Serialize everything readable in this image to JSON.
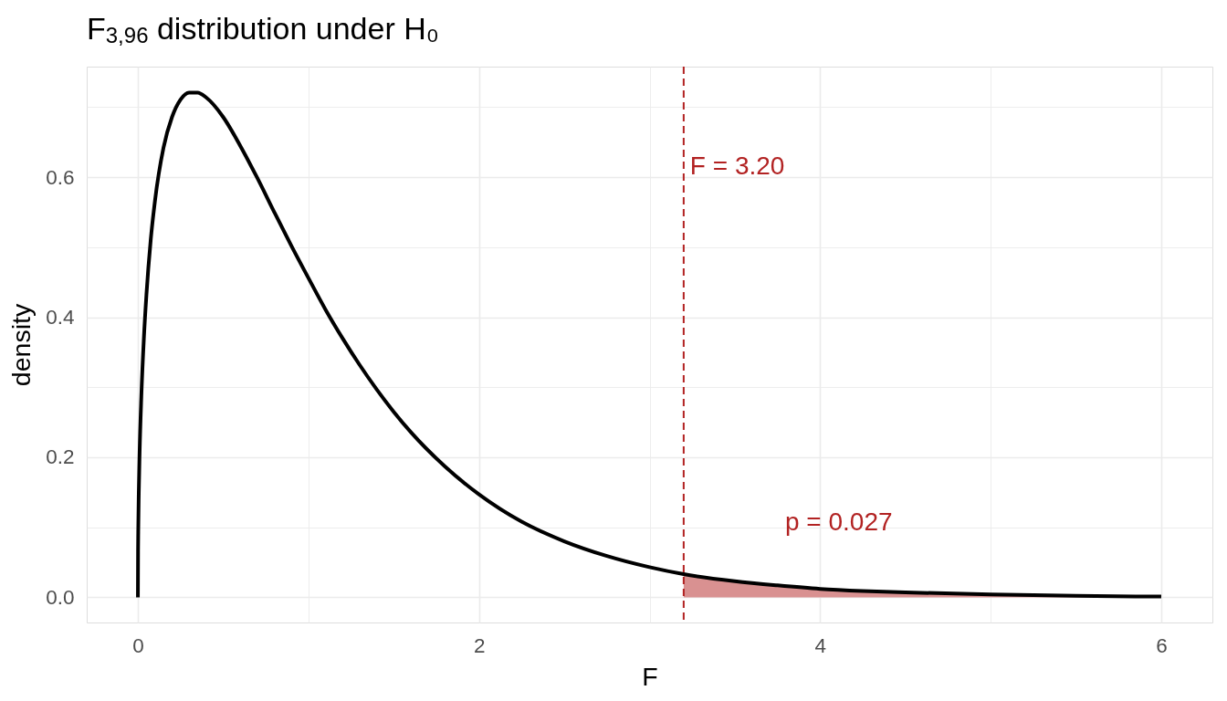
{
  "chart_data": {
    "type": "line",
    "title": "F$_{3,96}$ distribution under H₀",
    "xlabel": "F",
    "ylabel": "density",
    "xlim": [
      -0.3,
      6.3
    ],
    "ylim": [
      -0.036,
      0.758
    ],
    "xticks": [
      0,
      {
        "value": 1,
        "label": null
      },
      2,
      {
        "value": 3,
        "label": null
      },
      4,
      {
        "value": 5,
        "label": null
      },
      6
    ],
    "yticks": [
      {
        "value": 0,
        "label": "0.0"
      },
      {
        "value": 0.1,
        "label": null
      },
      0.2,
      {
        "value": 0.3,
        "label": null
      },
      0.4,
      {
        "value": 0.5,
        "label": null
      },
      0.6,
      {
        "value": 0.7,
        "label": null
      }
    ],
    "grid": true,
    "series": [
      {
        "type": "area",
        "color": "#d99191",
        "x": [
          3.2,
          3.5,
          3.75,
          4.0,
          4.25,
          4.5,
          5.0,
          5.5,
          6.0
        ],
        "values": [
          0.033,
          0.023,
          0.017,
          0.012,
          0.009,
          0.007,
          0.004,
          0.002,
          0.001
        ]
      },
      {
        "color": "#000000",
        "x": [
          0,
          0.001,
          0.002,
          0.005,
          0.01,
          0.02,
          0.035,
          0.05,
          0.075,
          0.1,
          0.15,
          0.2,
          0.25,
          0.3,
          0.35,
          0.4,
          0.5,
          0.6,
          0.7,
          0.8,
          0.9,
          1.0,
          1.1,
          1.2,
          1.3,
          1.4,
          1.5,
          1.6,
          1.8,
          2.0,
          2.25,
          2.5,
          2.75,
          3.0,
          3.2,
          3.5,
          3.75,
          4.0,
          4.25,
          4.5,
          5.0,
          5.5,
          6.0
        ],
        "values": [
          0,
          0.066,
          0.093,
          0.147,
          0.206,
          0.286,
          0.37,
          0.432,
          0.51,
          0.566,
          0.642,
          0.686,
          0.711,
          0.721,
          0.721,
          0.714,
          0.686,
          0.645,
          0.599,
          0.55,
          0.502,
          0.456,
          0.411,
          0.37,
          0.332,
          0.297,
          0.265,
          0.236,
          0.187,
          0.147,
          0.108,
          0.08,
          0.059,
          0.043,
          0.033,
          0.023,
          0.017,
          0.012,
          0.009,
          0.007,
          0.004,
          0.002,
          0.001
        ]
      }
    ],
    "ref_lines": [
      {
        "axis": "x",
        "value": 3.2,
        "color": "#b22222",
        "line_style": "dashed",
        "label": "F = 3.20"
      }
    ],
    "annotations": [
      "p = 0.027"
    ]
  }
}
